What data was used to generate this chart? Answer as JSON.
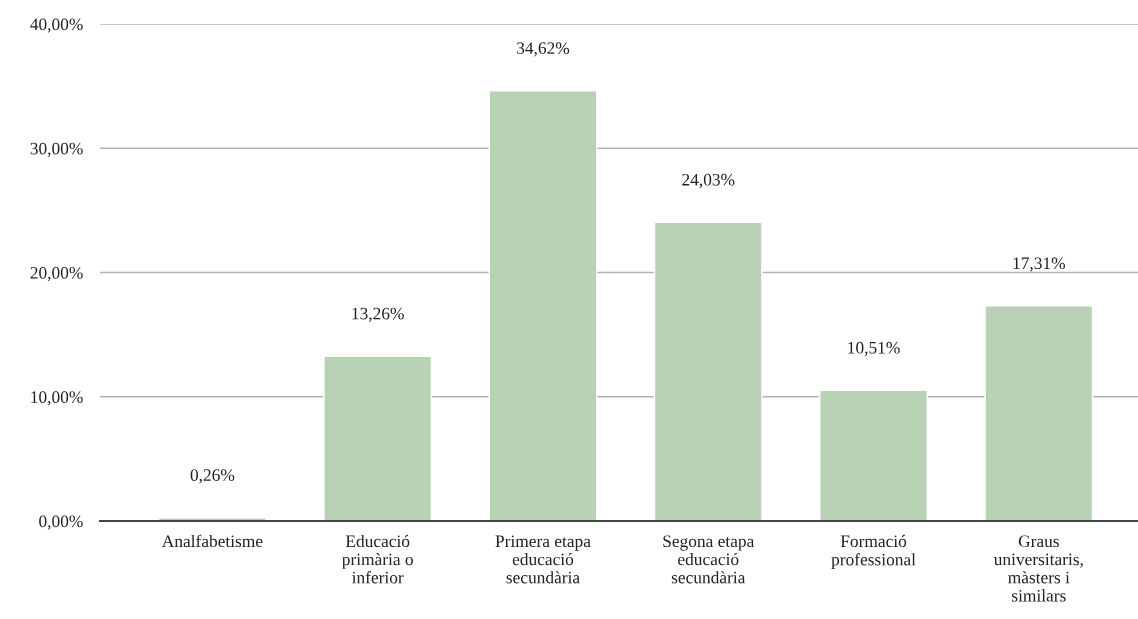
{
  "chart_data": {
    "type": "bar",
    "categories": [
      "Analfabetisme",
      "Educació\nprimària o\ninferior",
      "Primera etapa\neducació\nsecundària",
      "Segona etapa\neducació\nsecundària",
      "Formació\nprofessional",
      "Graus\nuniversitaris,\nmàsters i\nsimilars"
    ],
    "values": [
      0.26,
      13.26,
      34.62,
      24.03,
      10.51,
      17.31
    ],
    "value_labels": [
      "0,26%",
      "13,26%",
      "34,62%",
      "24,03%",
      "10,51%",
      "17,31%"
    ],
    "color": "#b9d2b6",
    "ylim": [
      0,
      40
    ],
    "yticks": [
      {
        "value": 0,
        "label": "0,00%"
      },
      {
        "value": 10,
        "label": "10,00%"
      },
      {
        "value": 20,
        "label": "20,00%"
      },
      {
        "value": 30,
        "label": "30,00%"
      },
      {
        "value": 40,
        "label": "40,00%"
      }
    ],
    "grid": "y",
    "legend": false
  }
}
